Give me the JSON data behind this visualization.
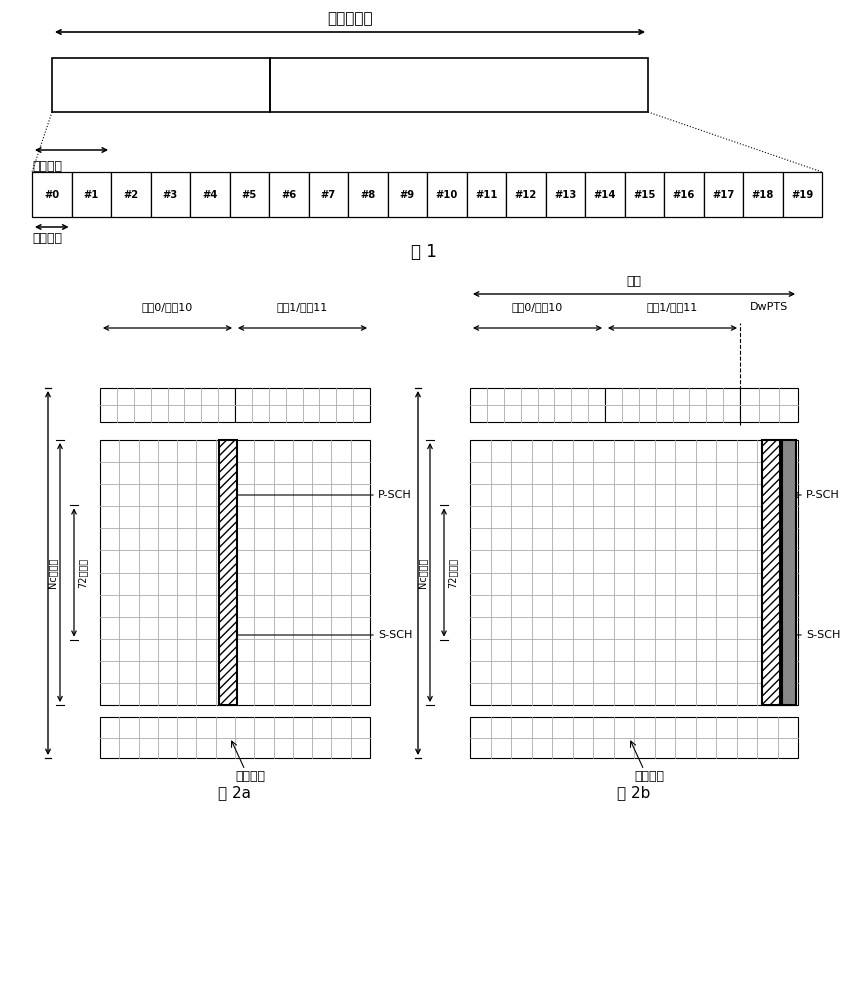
{
  "fig1_title": "一个无线帧",
  "fig1_subframe_label": "一个子帧",
  "fig1_timeslot_label": "一个时隙",
  "fig1_slots": [
    "#0",
    "#1",
    "#2",
    "#3",
    "#4",
    "#5",
    "#6",
    "#7",
    "#8",
    "#9",
    "#10",
    "#11",
    "#12",
    "#13",
    "#14",
    "#15",
    "#16",
    "#17",
    "#18",
    "#19"
  ],
  "fig1_label": "图 1",
  "fig2a_label": "图 2a",
  "fig2b_label": "图 2b",
  "fig2a_ts0_label": "时隙0/时隙10",
  "fig2a_ts1_label": "时隙1/时隙11",
  "fig2b_ts0_label": "时隙0/时隙10",
  "fig2b_ts1_label": "时隙1/时隙11",
  "fig2b_dwpts_label": "DwPTS",
  "fig2b_subframe_label": "子帧",
  "psch_label": "P-SCH",
  "ssch_label": "S-SCH",
  "nc_label": "Nc子载波",
  "n72_label": "72子载波",
  "data_region_label": "数据区域",
  "bg_color": "#ffffff",
  "grid_color": "#aaaaaa",
  "line_color": "#000000"
}
